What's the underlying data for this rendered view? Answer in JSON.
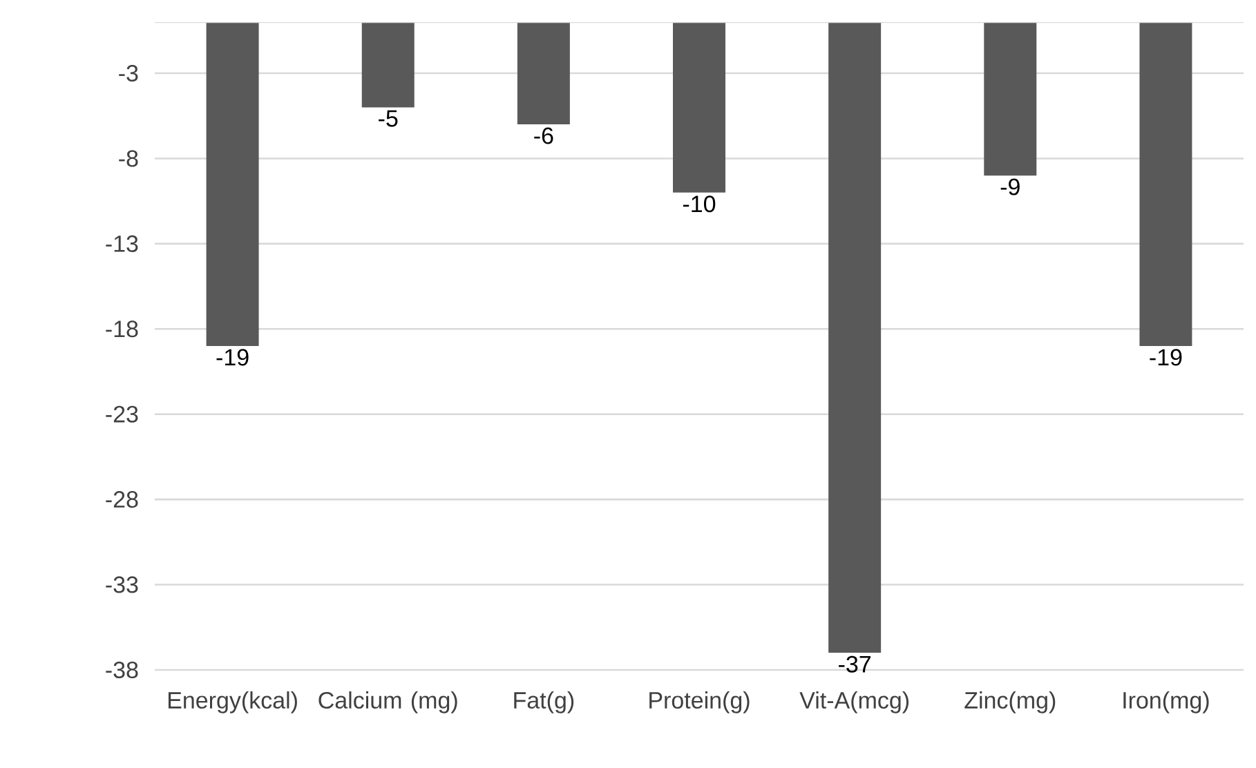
{
  "chart_data": {
    "type": "bar",
    "categories": [
      "Energy(kcal)",
      "Calcium (mg)",
      "Fat(g)",
      "Protein(g)",
      "Vit-A(mcg)",
      "Zinc(mg)",
      "Iron(mg)"
    ],
    "values": [
      -19,
      -5,
      -6,
      -10,
      -37,
      -9,
      -19
    ],
    "color": "#595959",
    "ylim": [
      -38,
      0
    ],
    "yticks": [
      -38,
      -33,
      -28,
      -23,
      -18,
      -13,
      -8,
      -3
    ],
    "grid": "y",
    "data_labels": true
  }
}
